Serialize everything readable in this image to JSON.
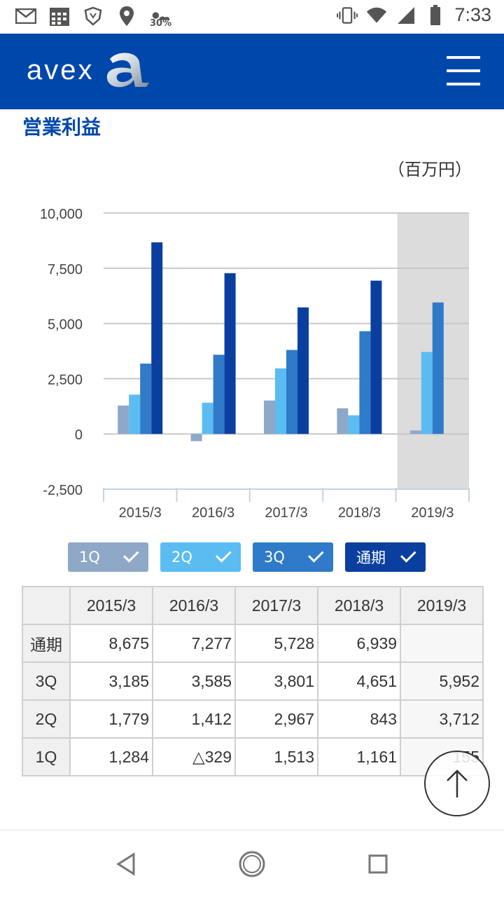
{
  "status_bar": {
    "time": "7:33",
    "battery_saver_pct": "30%",
    "icons": [
      "mail-icon",
      "calendar-icon",
      "shield-icon",
      "location-icon",
      "weather-icon",
      "vibrate-icon",
      "wifi-icon",
      "signal-icon",
      "battery-icon"
    ]
  },
  "header": {
    "logo_text": "avex",
    "menu_icon": "hamburger-menu-icon",
    "color": "#0047ab"
  },
  "page": {
    "title": "営業利益",
    "unit": "（百万円）"
  },
  "chart_data": {
    "type": "bar",
    "title": "",
    "xlabel": "",
    "ylabel": "",
    "categories": [
      "2015/3",
      "2016/3",
      "2017/3",
      "2018/3",
      "2019/3"
    ],
    "series": [
      {
        "name": "1Q",
        "color": "#8fa8c8",
        "values": [
          1284,
          -329,
          1513,
          1161,
          155
        ]
      },
      {
        "name": "2Q",
        "color": "#5bbcf2",
        "values": [
          1779,
          1412,
          2967,
          843,
          3712
        ]
      },
      {
        "name": "3Q",
        "color": "#2f7ac9",
        "values": [
          3185,
          3585,
          3801,
          4651,
          5952
        ]
      },
      {
        "name": "通期",
        "color": "#0a3fa0",
        "values": [
          8675,
          7277,
          5728,
          6939,
          null
        ]
      }
    ],
    "yticks": [
      "10,000",
      "7,500",
      "5,000",
      "2,500",
      "0",
      "-2,500"
    ],
    "ylim": [
      -2500,
      10000
    ],
    "highlight_category": "2019/3",
    "grid": true
  },
  "legend": [
    {
      "label": "1Q",
      "color": "#8fa8c8"
    },
    {
      "label": "2Q",
      "color": "#5bbcf2"
    },
    {
      "label": "3Q",
      "color": "#2f7ac9"
    },
    {
      "label": "通期",
      "color": "#0a3fa0"
    }
  ],
  "table": {
    "columns": [
      "2015/3",
      "2016/3",
      "2017/3",
      "2018/3",
      "2019/3"
    ],
    "rows": [
      {
        "label": "通期",
        "cells": [
          "8,675",
          "7,277",
          "5,728",
          "6,939",
          ""
        ]
      },
      {
        "label": "3Q",
        "cells": [
          "3,185",
          "3,585",
          "3,801",
          "4,651",
          "5,952"
        ]
      },
      {
        "label": "2Q",
        "cells": [
          "1,779",
          "1,412",
          "2,967",
          "843",
          "3,712"
        ]
      },
      {
        "label": "1Q",
        "cells": [
          "1,284",
          "△329",
          "1,513",
          "1,161",
          "155"
        ]
      }
    ]
  },
  "scroll_top_icon": "arrow-up-icon",
  "nav": {
    "back": "back-icon",
    "home": "home-icon",
    "recents": "recents-icon"
  }
}
